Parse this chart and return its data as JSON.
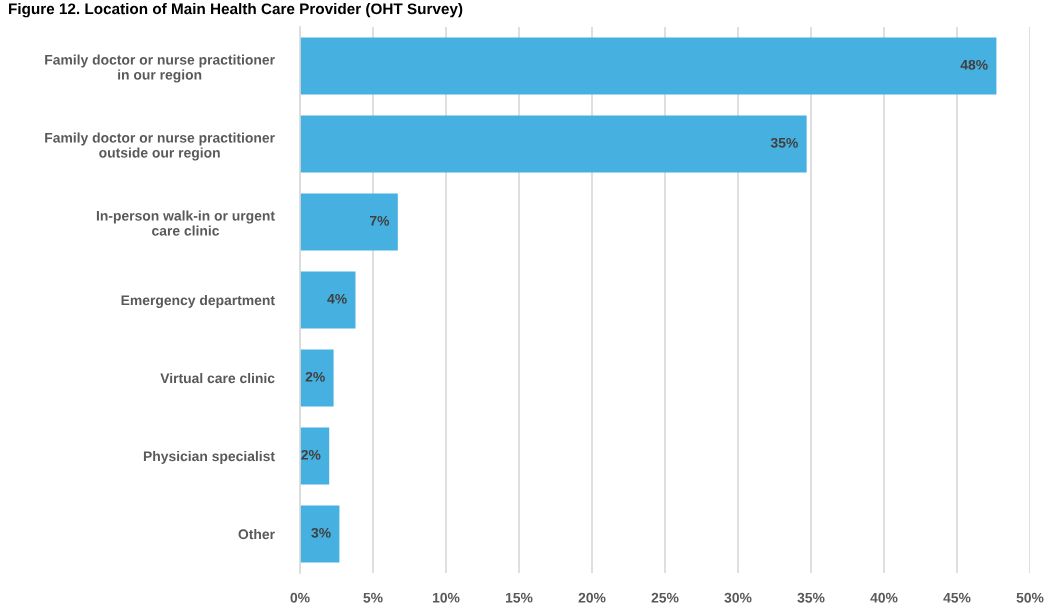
{
  "chart_data": {
    "type": "bar",
    "orientation": "horizontal",
    "title": "Figure 12. Location of Main Health Care Provider (OHT Survey)",
    "categories": [
      "Family doctor or nurse practitioner\nin our region",
      "Family doctor or nurse practitioner\noutside our region",
      "In-person walk-in or urgent\ncare clinic",
      "Emergency department",
      "Virtual care clinic",
      "Physician specialist",
      "Other"
    ],
    "values": [
      47.7,
      34.7,
      6.7,
      3.8,
      2.3,
      2.0,
      2.7
    ],
    "value_labels": [
      "48%",
      "35%",
      "7%",
      "4%",
      "2%",
      "2%",
      "3%"
    ],
    "color": "#46b0e1",
    "xlim": [
      0,
      50
    ],
    "xticks": [
      {
        "value": 0,
        "label": "0%"
      },
      {
        "value": 5,
        "label": "5%"
      },
      {
        "value": 10,
        "label": "10%"
      },
      {
        "value": 15,
        "label": "15%"
      },
      {
        "value": 20,
        "label": "20%"
      },
      {
        "value": 25,
        "label": "25%"
      },
      {
        "value": 30,
        "label": "30%"
      },
      {
        "value": 35,
        "label": "35%"
      },
      {
        "value": 40,
        "label": "40%"
      },
      {
        "value": 45,
        "label": "45%"
      },
      {
        "value": 50,
        "label": "50%"
      }
    ],
    "grid": "x",
    "legend": false
  }
}
